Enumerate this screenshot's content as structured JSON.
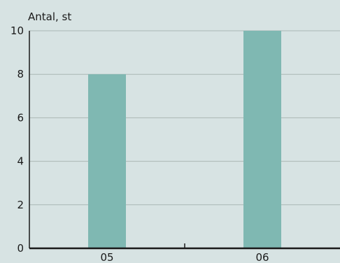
{
  "chart_data": {
    "type": "bar",
    "title": "",
    "xlabel": "",
    "ylabel": "Antal, st",
    "categories": [
      "05",
      "06"
    ],
    "values": [
      8,
      10
    ],
    "ylim": [
      0,
      10
    ],
    "yticks": [
      "0",
      "2",
      "4",
      "6",
      "8",
      "10"
    ],
    "grid": true,
    "colors": {
      "background": "#d7e3e3",
      "bar": "#7fb8b2",
      "grid": "#aab7b5",
      "axis": "#1a1a1a"
    }
  }
}
